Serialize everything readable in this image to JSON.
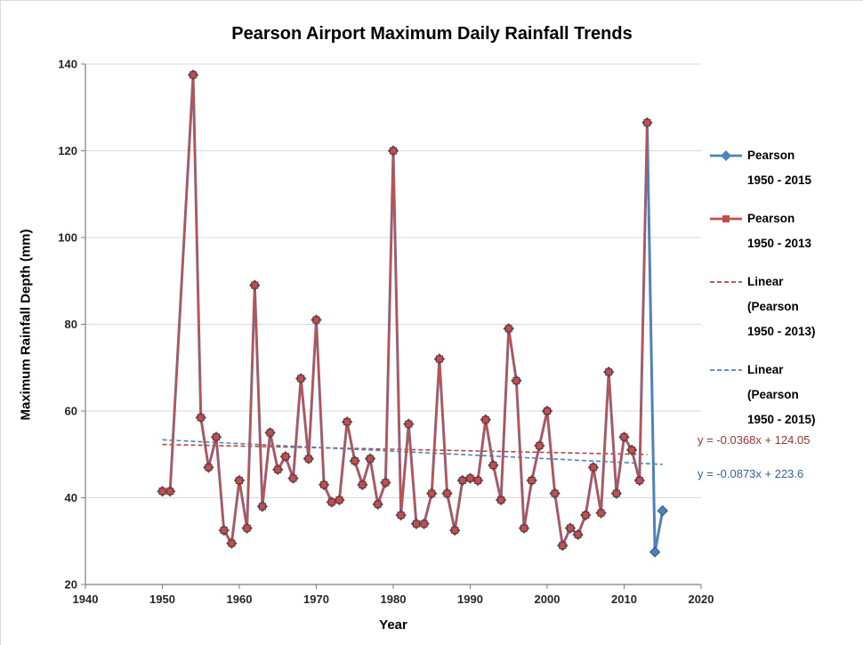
{
  "title": "Pearson Airport Maximum Daily Rainfall Trends",
  "axes": {
    "x_label": "Year",
    "y_label": "Maximum Rainfall Depth (mm)"
  },
  "legend": {
    "items": [
      {
        "lines": [
          "Pearson",
          "1950 - 2015"
        ],
        "color": "#4F81BD",
        "dashed": false,
        "marker": "diamond"
      },
      {
        "lines": [
          "Pearson",
          "1950 - 2013"
        ],
        "color": "#C0504D",
        "dashed": false,
        "marker": "square"
      },
      {
        "lines": [
          "Linear",
          "(Pearson",
          "1950 - 2013)"
        ],
        "color": "#B04543",
        "dashed": true,
        "marker": null
      },
      {
        "lines": [
          "Linear",
          "(Pearson",
          "1950 - 2015)"
        ],
        "color": "#4F81BD",
        "dashed": true,
        "marker": null
      }
    ]
  },
  "equations": [
    {
      "text": "y = -0.0368x + 124.05",
      "color": "#953735"
    },
    {
      "text": "y = -0.0873x + 223.6",
      "color": "#376092"
    }
  ],
  "chart_data": {
    "type": "line",
    "title": "Pearson Airport Maximum Daily Rainfall Trends",
    "xlabel": "Year",
    "ylabel": "Maximum Rainfall Depth (mm)",
    "xlim": [
      1940,
      2020
    ],
    "ylim": [
      20,
      140
    ],
    "x_ticks": [
      1940,
      1950,
      1960,
      1970,
      1980,
      1990,
      2000,
      2010,
      2020
    ],
    "y_ticks": [
      20,
      40,
      60,
      80,
      100,
      120,
      140
    ],
    "grid": "horizontal",
    "legend_position": "right",
    "years": [
      1950,
      1951,
      1952,
      1953,
      1954,
      1955,
      1956,
      1957,
      1958,
      1959,
      1960,
      1961,
      1962,
      1963,
      1964,
      1965,
      1966,
      1967,
      1968,
      1969,
      1970,
      1971,
      1972,
      1973,
      1974,
      1975,
      1976,
      1977,
      1978,
      1979,
      1980,
      1981,
      1982,
      1983,
      1984,
      1985,
      1986,
      1987,
      1988,
      1989,
      1990,
      1991,
      1992,
      1993,
      1994,
      1995,
      1996,
      1997,
      1998,
      1999,
      2000,
      2001,
      2002,
      2003,
      2004,
      2005,
      2006,
      2007,
      2008,
      2009,
      2010,
      2011,
      2012,
      2013,
      2014,
      2015
    ],
    "series": [
      {
        "name": "Pearson 1950 - 2015",
        "color": "#4F81BD",
        "marker": "diamond",
        "marker_edge": "#2F5374",
        "line_width": 3,
        "values": [
          41.5,
          41.5,
          null,
          null,
          137.5,
          58.5,
          47,
          54,
          32.5,
          29.5,
          44,
          33,
          89,
          38,
          55,
          46.5,
          49.5,
          44.5,
          67.5,
          49,
          81,
          43,
          39,
          39.5,
          57.5,
          48.5,
          43,
          49,
          38.5,
          43.5,
          120,
          36,
          57,
          34,
          34,
          41,
          72,
          41,
          32.5,
          44,
          44.5,
          44,
          58,
          47.5,
          39.5,
          79,
          67,
          33,
          44,
          52,
          60,
          41,
          29,
          33,
          31.5,
          36,
          47,
          36.5,
          69,
          41,
          54,
          51,
          44,
          126.5,
          27.5,
          37
        ]
      },
      {
        "name": "Pearson 1950 - 2013",
        "color": "#C0504D",
        "marker": "square",
        "marker_edge": "#7E2E2C",
        "line_width": 2.2,
        "values": [
          41.5,
          41.5,
          null,
          null,
          137.5,
          58.5,
          47,
          54,
          32.5,
          29.5,
          44,
          33,
          89,
          38,
          55,
          46.5,
          49.5,
          44.5,
          67.5,
          49,
          81,
          43,
          39,
          39.5,
          57.5,
          48.5,
          43,
          49,
          38.5,
          43.5,
          120,
          36,
          57,
          34,
          34,
          41,
          72,
          41,
          32.5,
          44,
          44.5,
          44,
          58,
          47.5,
          39.5,
          79,
          67,
          33,
          44,
          52,
          60,
          41,
          29,
          33,
          31.5,
          36,
          47,
          36.5,
          69,
          41,
          54,
          51,
          44,
          126.5,
          null,
          null
        ]
      }
    ],
    "trendlines": [
      {
        "name": "Linear (Pearson 1950 - 2013)",
        "equation": "y = -0.0368x + 124.05",
        "slope": -0.0368,
        "intercept": 124.05,
        "color": "#B04543",
        "x_start": 1950,
        "x_end": 2013
      },
      {
        "name": "Linear (Pearson 1950 - 2015)",
        "equation": "y = -0.0873x + 223.6",
        "slope": -0.0873,
        "intercept": 223.6,
        "color": "#4F81BD",
        "x_start": 1950,
        "x_end": 2015
      }
    ]
  }
}
